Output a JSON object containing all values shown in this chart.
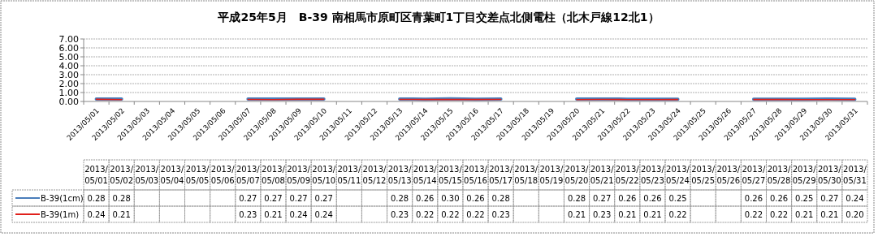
{
  "chart_data": {
    "type": "line",
    "title": "平成25年5月　B-39 南相馬市原町区青葉町1丁目交差点北側電柱（北木戸線12北1）",
    "categories": [
      "2013/05/01",
      "2013/05/02",
      "2013/05/03",
      "2013/05/04",
      "2013/05/05",
      "2013/05/06",
      "2013/05/07",
      "2013/05/08",
      "2013/05/09",
      "2013/05/10",
      "2013/05/11",
      "2013/05/12",
      "2013/05/13",
      "2013/05/14",
      "2013/05/15",
      "2013/05/16",
      "2013/05/17",
      "2013/05/18",
      "2013/05/19",
      "2013/05/20",
      "2013/05/21",
      "2013/05/22",
      "2013/05/23",
      "2013/05/24",
      "2013/05/25",
      "2013/05/26",
      "2013/05/27",
      "2013/05/28",
      "2013/05/29",
      "2013/05/30",
      "2013/05/31"
    ],
    "series": [
      {
        "name": "B-39(1cm)",
        "color": "#4a7ebb",
        "values": [
          0.28,
          0.28,
          null,
          null,
          null,
          null,
          0.27,
          0.27,
          0.27,
          0.27,
          null,
          null,
          0.28,
          0.26,
          0.3,
          0.26,
          0.28,
          null,
          null,
          0.28,
          0.27,
          0.26,
          0.26,
          0.25,
          null,
          null,
          0.26,
          0.26,
          0.25,
          0.27,
          0.24
        ],
        "value_labels": [
          "0.28",
          "0.28",
          null,
          null,
          null,
          null,
          "0.27",
          "0.27",
          "0.27",
          "0.27",
          null,
          null,
          "0.28",
          "0.26",
          "0.30",
          "0.26",
          "0.28",
          null,
          null,
          "0.28",
          "0.27",
          "0.26",
          "0.26",
          "0.25",
          null,
          null,
          "0.26",
          "0.26",
          "0.25",
          "0.27",
          "0.24"
        ]
      },
      {
        "name": "B-39(1m)",
        "color": "#e0201b",
        "values": [
          0.24,
          0.21,
          null,
          null,
          null,
          null,
          0.23,
          0.21,
          0.24,
          0.24,
          null,
          null,
          0.23,
          0.22,
          0.22,
          0.22,
          0.23,
          null,
          null,
          0.21,
          0.23,
          0.21,
          0.21,
          0.22,
          null,
          null,
          0.22,
          0.22,
          0.21,
          0.21,
          0.2
        ],
        "value_labels": [
          "0.24",
          "0.21",
          null,
          null,
          null,
          null,
          "0.23",
          "0.21",
          "0.24",
          "0.24",
          null,
          null,
          "0.23",
          "0.22",
          "0.22",
          "0.22",
          "0.23",
          null,
          null,
          "0.21",
          "0.23",
          "0.21",
          "0.21",
          "0.22",
          null,
          null,
          "0.22",
          "0.22",
          "0.21",
          "0.21",
          "0.20"
        ]
      }
    ],
    "ylim": [
      0,
      7
    ],
    "yticks": [
      {
        "value": 0,
        "label": "0.00"
      },
      {
        "value": 1,
        "label": "1.00"
      },
      {
        "value": 2,
        "label": "2.00"
      },
      {
        "value": 3,
        "label": "3.00"
      },
      {
        "value": 4,
        "label": "4.00"
      },
      {
        "value": 5,
        "label": "5.00"
      },
      {
        "value": 6,
        "label": "6.00"
      },
      {
        "value": 7,
        "label": "7.00"
      }
    ],
    "grid": "y",
    "legend": "bottom left",
    "marker": "none",
    "line_style": "solid"
  }
}
